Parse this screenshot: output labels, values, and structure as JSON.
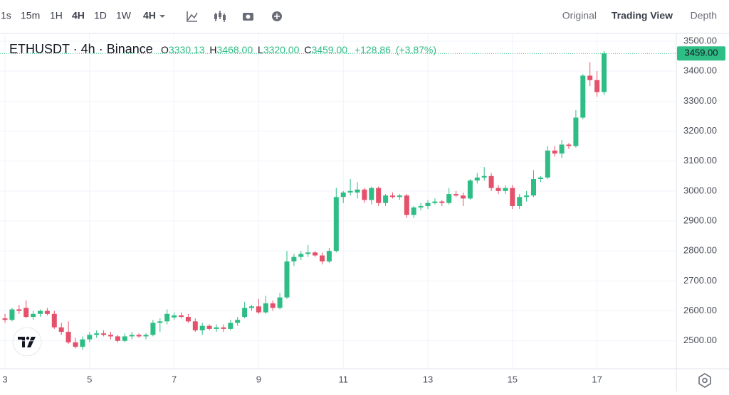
{
  "toolbar": {
    "intervals": [
      "1s",
      "15m",
      "1H",
      "4H",
      "1D",
      "1W"
    ],
    "interval_menu": "4H",
    "views": [
      "Original",
      "Trading View",
      "Depth"
    ]
  },
  "chart_data": {
    "type": "candlestick",
    "title": "ETHUSDT · 4h · Binance",
    "legend_keys": [
      "O",
      "H",
      "L",
      "C"
    ],
    "legend_values": [
      "3330.13",
      "3468.00",
      "3320.00",
      "3459.00"
    ],
    "change": "+128.86",
    "change_pct": "(+3.87%)",
    "last_price_label": "3459.00",
    "up_color": "#2ebd85",
    "down_color": "#e5506a",
    "grid": true,
    "categories": [
      "3",
      null,
      null,
      null,
      null,
      null,
      null,
      null,
      null,
      null,
      null,
      null,
      "5",
      null,
      null,
      null,
      null,
      null,
      null,
      null,
      null,
      null,
      null,
      null,
      "7",
      null,
      null,
      null,
      null,
      null,
      null,
      null,
      null,
      null,
      null,
      null,
      "9",
      null,
      null,
      null,
      null,
      null,
      null,
      null,
      null,
      null,
      null,
      null,
      "11",
      null,
      null,
      null,
      null,
      null,
      null,
      null,
      null,
      null,
      null,
      null,
      "13",
      null,
      null,
      null,
      null,
      null,
      null,
      null,
      null,
      null,
      null,
      null,
      "15",
      null,
      null,
      null,
      null,
      null,
      null,
      null,
      null,
      null,
      null,
      null,
      "17",
      null
    ],
    "open": [
      2575,
      2570,
      2605,
      2610,
      2580,
      2590,
      2600,
      2590,
      2545,
      2530,
      2495,
      2480,
      2505,
      2520,
      2525,
      2520,
      2515,
      2500,
      2515,
      2520,
      2515,
      2520,
      2560,
      2565,
      2578,
      2585,
      2580,
      2565,
      2535,
      2550,
      2540,
      2545,
      2540,
      2560,
      2580,
      2610,
      2615,
      2595,
      2625,
      2610,
      2645,
      2765,
      2780,
      2790,
      2795,
      2785,
      2765,
      2800,
      2980,
      2995,
      2995,
      3005,
      2970,
      3010,
      2960,
      2985,
      2980,
      2985,
      2920,
      2945,
      2950,
      2960,
      2965,
      2960,
      2990,
      2985,
      2975,
      3035,
      3045,
      3050,
      3010,
      3000,
      3010,
      2950,
      2980,
      2985,
      3040,
      3045,
      3135,
      3125,
      3155,
      3150,
      3245,
      3385,
      3370,
      3330.13
    ],
    "high": [
      2590,
      2610,
      2620,
      2635,
      2600,
      2605,
      2610,
      2600,
      2560,
      2565,
      2510,
      2515,
      2530,
      2535,
      2535,
      2530,
      2520,
      2525,
      2530,
      2525,
      2525,
      2570,
      2575,
      2605,
      2595,
      2595,
      2590,
      2575,
      2560,
      2555,
      2555,
      2555,
      2570,
      2580,
      2630,
      2620,
      2640,
      2650,
      2635,
      2660,
      2800,
      2790,
      2800,
      2820,
      2800,
      2795,
      2810,
      3010,
      3000,
      3040,
      3030,
      3010,
      3015,
      3015,
      2990,
      2995,
      2990,
      2990,
      2950,
      2960,
      2970,
      2975,
      2970,
      3010,
      3000,
      2995,
      3040,
      3060,
      3080,
      3060,
      3020,
      3020,
      3020,
      2990,
      3000,
      3070,
      3050,
      3150,
      3150,
      3170,
      3160,
      3270,
      3390,
      3430,
      3400,
      3468
    ],
    "low": [
      2560,
      2565,
      2590,
      2575,
      2570,
      2580,
      2585,
      2540,
      2520,
      2490,
      2475,
      2470,
      2495,
      2510,
      2515,
      2505,
      2495,
      2495,
      2505,
      2510,
      2505,
      2515,
      2530,
      2555,
      2570,
      2575,
      2560,
      2530,
      2520,
      2535,
      2530,
      2530,
      2535,
      2550,
      2575,
      2600,
      2590,
      2590,
      2600,
      2605,
      2640,
      2750,
      2770,
      2780,
      2780,
      2755,
      2760,
      2795,
      2960,
      2985,
      2975,
      2960,
      2955,
      2950,
      2950,
      2975,
      2970,
      2910,
      2910,
      2935,
      2940,
      2955,
      2950,
      2955,
      2980,
      2950,
      2970,
      3025,
      3035,
      3000,
      2990,
      2990,
      2940,
      2940,
      2965,
      2980,
      3030,
      3040,
      3115,
      3110,
      3140,
      3145,
      3240,
      3350,
      3315,
      3320
    ],
    "close": [
      2570,
      2605,
      2600,
      2580,
      2590,
      2600,
      2590,
      2545,
      2530,
      2495,
      2480,
      2505,
      2520,
      2525,
      2520,
      2515,
      2500,
      2515,
      2520,
      2515,
      2520,
      2560,
      2565,
      2590,
      2585,
      2580,
      2565,
      2535,
      2550,
      2540,
      2545,
      2540,
      2560,
      2570,
      2610,
      2615,
      2595,
      2625,
      2610,
      2645,
      2765,
      2780,
      2790,
      2795,
      2785,
      2765,
      2800,
      2980,
      2995,
      3000,
      3005,
      2970,
      3010,
      2960,
      2985,
      2980,
      2985,
      2920,
      2945,
      2950,
      2960,
      2965,
      2960,
      2990,
      2985,
      2975,
      3035,
      3045,
      3050,
      3010,
      3000,
      3010,
      2950,
      2980,
      2985,
      3040,
      3045,
      3135,
      3125,
      3155,
      3150,
      3245,
      3385,
      3370,
      3330,
      3459
    ],
    "ylim": [
      2407,
      3526
    ],
    "yticks": [
      {
        "value": 2500,
        "label": "2500.00"
      },
      {
        "value": 2600,
        "label": "2600.00"
      },
      {
        "value": 2700,
        "label": "2700.00"
      },
      {
        "value": 2800,
        "label": "2800.00"
      },
      {
        "value": 2900,
        "label": "2900.00"
      },
      {
        "value": 3000,
        "label": "3000.00"
      },
      {
        "value": 3100,
        "label": "3100.00"
      },
      {
        "value": 3200,
        "label": "3200.00"
      },
      {
        "value": 3300,
        "label": "3300.00"
      },
      {
        "value": 3400,
        "label": "3400.00"
      },
      {
        "value": 3500,
        "label": "3500.00"
      }
    ]
  }
}
